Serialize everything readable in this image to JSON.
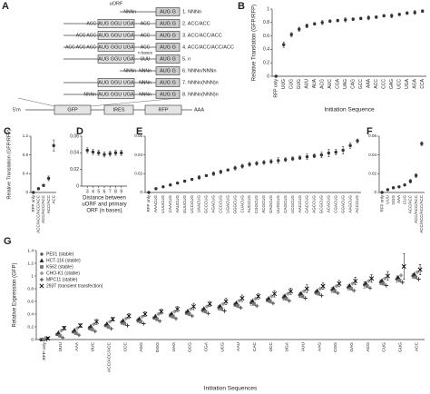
{
  "diagram": {
    "panel": "A",
    "uorf_label": "uORF",
    "rows": [
      {
        "pre": "NNNn",
        "start": "AUG G",
        "label": "1. NNNn"
      },
      {
        "pre": "ACC",
        "uorf": "AUG GGU UGA",
        "mid": "ACC",
        "start": "AUG G",
        "label": "2. ACC/ACC"
      },
      {
        "pre": "ACC ACC",
        "uorf": "AUG GGU UGA",
        "mid": "ACC",
        "start": "AUG G",
        "label": "3. ACC/ACC/ACC"
      },
      {
        "pre": "ACC ACC ACC",
        "uorf": "AUG GGU UGA",
        "mid": "ACC",
        "start": "AUG G",
        "label": "4. ACC/ACC/ACC/ACC"
      },
      {
        "uorf": "AUG GGU UGA",
        "mid": "UUU",
        "note": "n bases",
        "start": "AUG G",
        "label": "5. n"
      },
      {
        "pre": "NNNn",
        "mid": "NNNn",
        "start": "AUG G",
        "label": "6. NNNn/NNNn"
      },
      {
        "uorf": "AUG GGU UGA",
        "mid": "NNNn",
        "start": "AUG G",
        "label": "7. NNNn(NNN)n"
      },
      {
        "pre": "NNNn",
        "uorf": "AUG GGU UGA",
        "mid": "NNNn",
        "start": "AUG G",
        "label": "8. NNNn(NNN)n"
      }
    ],
    "construct": [
      "5'm",
      "GFP",
      "IRES",
      "RFP",
      "AAA"
    ]
  },
  "chart_data": [
    {
      "type": "scatter",
      "panel": "B",
      "ylabel": "Relative Translation (GFP/RFP)",
      "xlabel": "Initiation Sequence",
      "categories": [
        "RFP only",
        "UUG",
        "CUG",
        "GUG",
        "AUU",
        "AUA",
        "ACG",
        "AUC",
        "CGA",
        "UAG",
        "CAG",
        "GCC",
        "AAA",
        "ACC",
        "CCC",
        "GAG",
        "UCC",
        "UGA",
        "AGA",
        "CCA"
      ],
      "series": [
        {
          "color": "#333333",
          "marker": "circle",
          "values": [
            0,
            0.47,
            0.62,
            0.7,
            0.75,
            0.78,
            0.8,
            0.82,
            0.83,
            0.84,
            0.85,
            0.86,
            0.87,
            0.88,
            0.9,
            0.9,
            0.92,
            0.94,
            0.95,
            0.97
          ],
          "errors": [
            0,
            0.04,
            0.03,
            0.03,
            0.03,
            0.02,
            0.03,
            0.02,
            0.02,
            0.03,
            0.02,
            0.02,
            0.03,
            0.02,
            0.02,
            0.03,
            0.02,
            0.02,
            0.03,
            0.02
          ]
        }
      ],
      "ylim": [
        0,
        1
      ],
      "yticks": [
        0,
        0.2,
        0.4,
        0.6,
        0.8,
        1
      ]
    },
    {
      "type": "scatter",
      "panel": "C",
      "ylabel": "Relative Translation (GFP/RFP)",
      "categories": [
        "RFP only",
        "ACC/ACC/ACC/ACC",
        "ACC/ACC/ACC",
        "ACC/ACC",
        "ACC"
      ],
      "series": [
        {
          "color": "#333333",
          "marker": "circle",
          "values": [
            0,
            0.08,
            0.15,
            0.3,
            1.0
          ],
          "errors": [
            0,
            0.02,
            0.02,
            0.05,
            0.12
          ]
        }
      ],
      "ylim": [
        0,
        1.2
      ],
      "yticks": [
        0,
        0.4,
        0.8,
        1.2
      ]
    },
    {
      "type": "scatter",
      "panel": "D",
      "xlabel": [
        "Distance between",
        "uORF and primary",
        "ORF (n bases)"
      ],
      "x": [
        3,
        4,
        5,
        6,
        7,
        8,
        9
      ],
      "xlim": [
        2,
        10
      ],
      "xticks": [
        3,
        4,
        5,
        6,
        7,
        8,
        9
      ],
      "series": [
        {
          "color": "#333333",
          "marker": "circle",
          "values": [
            0.043,
            0.041,
            0.04,
            0.038,
            0.039,
            0.04,
            0.04
          ],
          "errors": [
            0.003,
            0.003,
            0.003,
            0.003,
            0.003,
            0.003,
            0.003
          ]
        }
      ],
      "ylim": [
        0,
        0.06
      ],
      "yticks": [
        0,
        0.02,
        0.04,
        0.06
      ]
    },
    {
      "type": "scatter",
      "panel": "E",
      "categories": [
        "RFP only",
        "AAACUG",
        "UUUCUG",
        "CAACUG",
        "AAUCUG",
        "GUUCUG",
        "UCCCUG",
        "UAACUG",
        "GCCCUG",
        "AGACUG",
        "CCCCUG",
        "UGACUG",
        "GGGCUG",
        "CUACUG",
        "AUCCUG",
        "CGGCUG",
        "ACGCUG",
        "GAGCUG",
        "UUGCUG",
        "CAGCUG",
        "UCGCUG",
        "AACCUG",
        "GACCUG",
        "AGCCUG",
        "GCGCUG",
        "ACACUG",
        "CGACUG",
        "GGACUG",
        "AAGCUG",
        "ACCCUG"
      ],
      "series": [
        {
          "color": "#333333",
          "marker": "circle",
          "values": [
            0,
            0.004,
            0.006,
            0.008,
            0.01,
            0.012,
            0.014,
            0.016,
            0.018,
            0.02,
            0.022,
            0.024,
            0.026,
            0.028,
            0.03,
            0.031,
            0.032,
            0.033,
            0.034,
            0.035,
            0.036,
            0.037,
            0.038,
            0.039,
            0.04,
            0.042,
            0.043,
            0.045,
            0.05,
            0.055
          ],
          "errors": [
            0,
            0.001,
            0.001,
            0.001,
            0.001,
            0.001,
            0.001,
            0.002,
            0.001,
            0.002,
            0.002,
            0.001,
            0.002,
            0.002,
            0.002,
            0.002,
            0.002,
            0.002,
            0.003,
            0.002,
            0.002,
            0.002,
            0.003,
            0.002,
            0.003,
            0.004,
            0.003,
            0.004,
            0.003,
            0.002
          ]
        }
      ],
      "ylim": [
        0,
        0.06
      ],
      "yticks": [
        0,
        0.02,
        0.04,
        0.06
      ]
    },
    {
      "type": "scatter",
      "panel": "F",
      "categories": [
        "RFP only",
        "UUU",
        "GGG",
        "AAA",
        "CUG",
        "ACC/ACC",
        "ACC/ACC/ACC",
        "ACC/ACC/ACC/ACC"
      ],
      "series": [
        {
          "color": "#333333",
          "marker": "circle",
          "values": [
            0,
            0.003,
            0.005,
            0.006,
            0.008,
            0.012,
            0.018,
            0.052
          ],
          "errors": [
            0,
            0.001,
            0.001,
            0.001,
            0.001,
            0.002,
            0.002,
            0.002
          ]
        }
      ],
      "ylim": [
        0,
        0.06
      ],
      "yticks": [
        0,
        0.02,
        0.04,
        0.06
      ]
    },
    {
      "type": "scatter",
      "panel": "G",
      "ylabel": "Relative Expression (GFP)",
      "xlabel": "Initiation Sequences",
      "legend": "upper left",
      "categories": [
        "RFP only",
        "UUU",
        "AAA",
        "UUC",
        "ACC/ACC/ACC",
        "CCC",
        "AGG",
        "GGG",
        "UAG",
        "GCG",
        "CGA",
        "UCG",
        "AAU",
        "CAC",
        "UCC",
        "UGA",
        "AUU",
        "AAG",
        "CGG",
        "GAG",
        "ACG",
        "CUG",
        "GUG",
        "ACC"
      ],
      "series": [
        {
          "name": "PE01 (stable)",
          "color": "#555555",
          "marker": "circle",
          "values": [
            0,
            0.08,
            0.12,
            0.18,
            0.22,
            0.27,
            0.3,
            0.34,
            0.38,
            0.42,
            0.46,
            0.5,
            0.55,
            0.58,
            0.62,
            0.66,
            0.7,
            0.74,
            0.78,
            0.82,
            0.86,
            0.9,
            0.95,
            1.0
          ],
          "errors": [
            0,
            0.02,
            0.02,
            0.03,
            0.02,
            0.03,
            0.03,
            0.02,
            0.03,
            0.03,
            0.03,
            0.04,
            0.03,
            0.04,
            0.03,
            0.04,
            0.04,
            0.03,
            0.04,
            0.04,
            0.05,
            0.04,
            0.05,
            0.04
          ]
        },
        {
          "name": "HCT-116 (stable)",
          "color": "#222222",
          "marker": "triangle",
          "values": [
            0,
            0.11,
            0.15,
            0.21,
            0.25,
            0.3,
            0.33,
            0.37,
            0.41,
            0.45,
            0.49,
            0.53,
            0.58,
            0.61,
            0.65,
            0.69,
            0.73,
            0.77,
            0.81,
            0.85,
            0.89,
            0.93,
            0.98,
            1.03
          ]
        },
        {
          "name": "K562 (stable)",
          "color": "#777777",
          "marker": "square",
          "values": [
            0,
            0.06,
            0.1,
            0.16,
            0.2,
            0.25,
            0.28,
            0.32,
            0.36,
            0.4,
            0.44,
            0.48,
            0.53,
            0.56,
            0.6,
            0.64,
            0.68,
            0.72,
            0.76,
            0.8,
            0.84,
            0.88,
            0.93,
            0.98
          ]
        },
        {
          "name": "CHO-K1 (stable)",
          "color": "#999999",
          "marker": "diamond",
          "values": [
            0.02,
            0.14,
            0.18,
            0.24,
            0.28,
            0.33,
            0.36,
            0.4,
            0.44,
            0.48,
            0.52,
            0.56,
            0.61,
            0.64,
            0.68,
            0.72,
            0.76,
            0.8,
            0.84,
            0.88,
            0.92,
            0.96,
            1.01,
            1.06
          ]
        },
        {
          "name": "MPC11 (stable)",
          "color": "#333333",
          "marker": "plus",
          "values": [
            0,
            0.03,
            0.07,
            0.13,
            0.17,
            0.22,
            0.25,
            0.29,
            0.33,
            0.37,
            0.41,
            0.45,
            0.5,
            0.53,
            0.57,
            0.61,
            0.65,
            0.69,
            0.73,
            0.77,
            0.81,
            0.85,
            0.9,
            0.95
          ]
        },
        {
          "name": "293T (transient transfection)",
          "color": "#000000",
          "marker": "cross",
          "values": [
            0.02,
            0.18,
            0.22,
            0.28,
            0.32,
            0.37,
            0.4,
            0.44,
            0.48,
            0.52,
            0.56,
            0.6,
            0.65,
            0.68,
            0.72,
            0.76,
            0.8,
            0.84,
            0.88,
            0.92,
            0.96,
            1.0,
            1.15,
            1.1
          ],
          "errors": [
            0.02,
            0.03,
            0.03,
            0.04,
            0.03,
            0.04,
            0.04,
            0.04,
            0.04,
            0.05,
            0.04,
            0.05,
            0.05,
            0.04,
            0.05,
            0.05,
            0.06,
            0.05,
            0.05,
            0.06,
            0.06,
            0.07,
            0.2,
            0.08
          ]
        }
      ],
      "ylim": [
        0,
        1.4
      ],
      "yticks": [
        0,
        0.2,
        0.4,
        0.6,
        0.8,
        1,
        1.2,
        1.4
      ]
    }
  ]
}
